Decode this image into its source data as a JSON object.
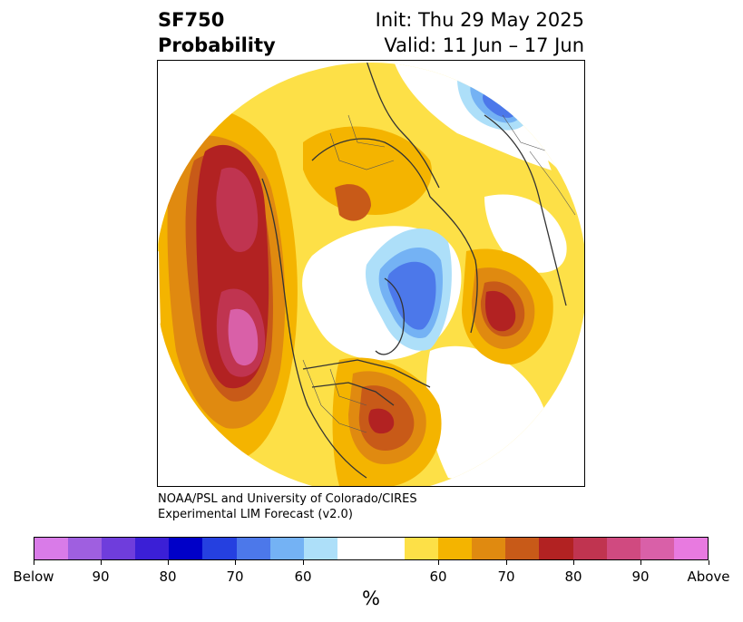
{
  "title": {
    "variable": "SF750",
    "product": "Probability",
    "init": "Init: Thu 29 May 2025",
    "valid": "Valid: 11 Jun – 17 Jun"
  },
  "credit": {
    "line1": "NOAA/PSL and University of Colorado/CIRES",
    "line2": "Experimental LIM Forecast (v2.0)"
  },
  "colorbar": {
    "colors": [
      "#d97be8",
      "#9f5fe0",
      "#6f3ddc",
      "#3b1fd6",
      "#0000c8",
      "#2540e0",
      "#4c78ea",
      "#74b2f4",
      "#addff9",
      "#ffffff",
      "#ffffff",
      "#fde047",
      "#f4b400",
      "#e08a10",
      "#c85a18",
      "#b22222",
      "#c03450",
      "#d04a80",
      "#d960a8",
      "#e87ae0"
    ],
    "ticks": [
      "Below",
      "90",
      "80",
      "70",
      "60",
      "60",
      "70",
      "80",
      "90",
      "Above"
    ],
    "unit": "%"
  }
}
